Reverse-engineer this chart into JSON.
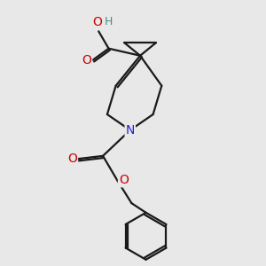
{
  "bg_color": "#e8e8e8",
  "bond_color": "#1a1a1a",
  "bond_width": 1.6,
  "atom_colors": {
    "O": "#cc0000",
    "N": "#2222cc",
    "H": "#4a8a8a"
  },
  "font_size_atom": 10,
  "font_size_H": 9,
  "xlim": [
    1.5,
    8.0
  ],
  "ylim": [
    0.3,
    9.5
  ]
}
